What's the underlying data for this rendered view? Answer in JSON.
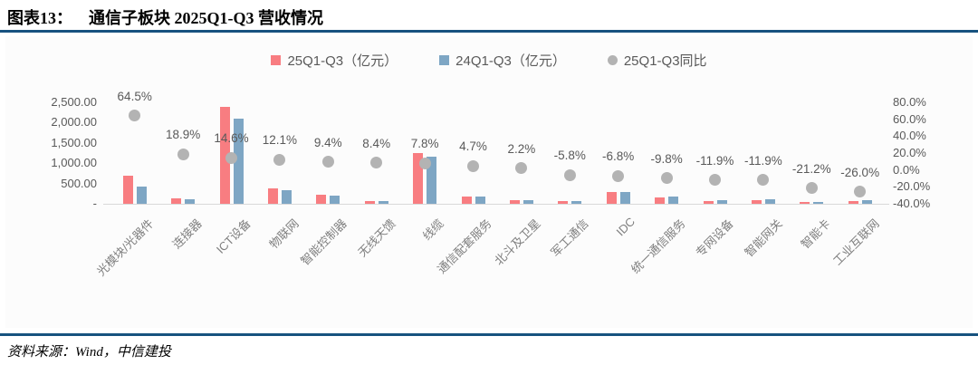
{
  "header": {
    "figure_label": "图表13：",
    "title": "通信子板块 2025Q1-Q3 营收情况"
  },
  "footer": {
    "source": "资料来源：Wind，中信建投"
  },
  "colors": {
    "bar_2025": "#f87d81",
    "bar_2024": "#7ea6c4",
    "dot": "#b3b3b3",
    "rule": "#17527f",
    "axis_text": "#595959",
    "category_text": "#7f7f7f",
    "axis_line": "#d9d9d9"
  },
  "chart_data": {
    "type": "bar",
    "title": "通信子板块 2025Q1-Q3 营收情况",
    "grid": false,
    "legend_position": "top",
    "categories": [
      "光模块/光器件",
      "连接器",
      "ICT设备",
      "物联网",
      "智能控制器",
      "无线天馈",
      "线缆",
      "通信配套服务",
      "北斗及卫星",
      "军工通信",
      "IDC",
      "统一通信服务",
      "专网设备",
      "智能网关",
      "智能卡",
      "工业互联网"
    ],
    "series": [
      {
        "name": "25Q1-Q3（亿元）",
        "kind": "bar",
        "color_key": "bar_2025",
        "values": [
          690,
          125,
          2395,
          370,
          219,
          67,
          1256,
          185,
          82,
          70,
          280,
          160,
          78,
          99,
          37,
          63
        ]
      },
      {
        "name": "24Q1-Q3（亿元）",
        "kind": "bar",
        "color_key": "bar_2024",
        "values": [
          420,
          105,
          2090,
          330,
          200,
          62,
          1165,
          177,
          80,
          74,
          300,
          178,
          89,
          112,
          47,
          85
        ]
      },
      {
        "name": "25Q1-Q3同比",
        "kind": "scatter",
        "axis": "right",
        "color_key": "dot",
        "values": [
          64.5,
          18.9,
          14.6,
          12.1,
          9.4,
          8.4,
          7.8,
          4.7,
          2.2,
          -5.8,
          -6.8,
          -9.8,
          -11.9,
          -11.9,
          -21.2,
          -26.0
        ]
      }
    ],
    "left_axis": {
      "range": [
        0,
        2500
      ],
      "ticks": [
        {
          "v": 2500,
          "label": "2,500.00"
        },
        {
          "v": 2000,
          "label": "2,000.00"
        },
        {
          "v": 1500,
          "label": "1,500.00"
        },
        {
          "v": 1000,
          "label": "1,000.00"
        },
        {
          "v": 500,
          "label": "500.00"
        },
        {
          "v": 0,
          "label": "-"
        }
      ]
    },
    "right_axis": {
      "range": [
        -40,
        80
      ],
      "ticks": [
        {
          "v": 80,
          "label": "80.0%"
        },
        {
          "v": 60,
          "label": "60.0%"
        },
        {
          "v": 40,
          "label": "40.0%"
        },
        {
          "v": 20,
          "label": "20.0%"
        },
        {
          "v": 0,
          "label": "0.0%"
        },
        {
          "v": -20,
          "label": "-20.0%"
        },
        {
          "v": -40,
          "label": "-40.0%"
        }
      ]
    }
  }
}
